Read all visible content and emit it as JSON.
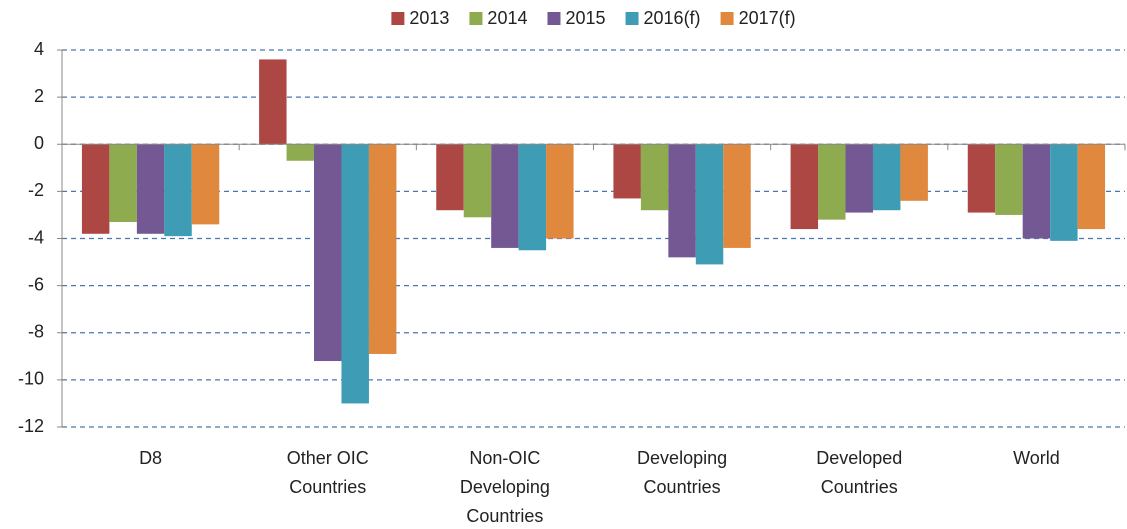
{
  "chart_data": {
    "type": "bar",
    "categories": [
      "D8",
      "Other OIC Countries",
      "Non-OIC Developing Countries",
      "Developing Countries",
      "Developed Countries",
      "World"
    ],
    "series": [
      {
        "name": "2013",
        "color": "#ad4744",
        "values": [
          -3.8,
          3.6,
          -2.8,
          -2.3,
          -3.6,
          -2.9
        ]
      },
      {
        "name": "2014",
        "color": "#8eab4f",
        "values": [
          -3.3,
          -0.7,
          -3.1,
          -2.8,
          -3.2,
          -3.0
        ]
      },
      {
        "name": "2015",
        "color": "#735894",
        "values": [
          -3.8,
          -9.2,
          -4.4,
          -4.8,
          -2.9,
          -4.0
        ]
      },
      {
        "name": "2016(f)",
        "color": "#3e9db5",
        "values": [
          -3.9,
          -11.0,
          -4.5,
          -5.1,
          -2.8,
          -4.1
        ]
      },
      {
        "name": "2017(f)",
        "color": "#e0883d",
        "values": [
          -3.4,
          -8.9,
          -4.0,
          -4.4,
          -2.4,
          -3.6
        ]
      }
    ],
    "ylim": [
      -12,
      4
    ],
    "yticks": [
      -12,
      -10,
      -8,
      -6,
      -4,
      -2,
      0,
      2,
      4
    ],
    "grid": true,
    "legend": "top"
  }
}
